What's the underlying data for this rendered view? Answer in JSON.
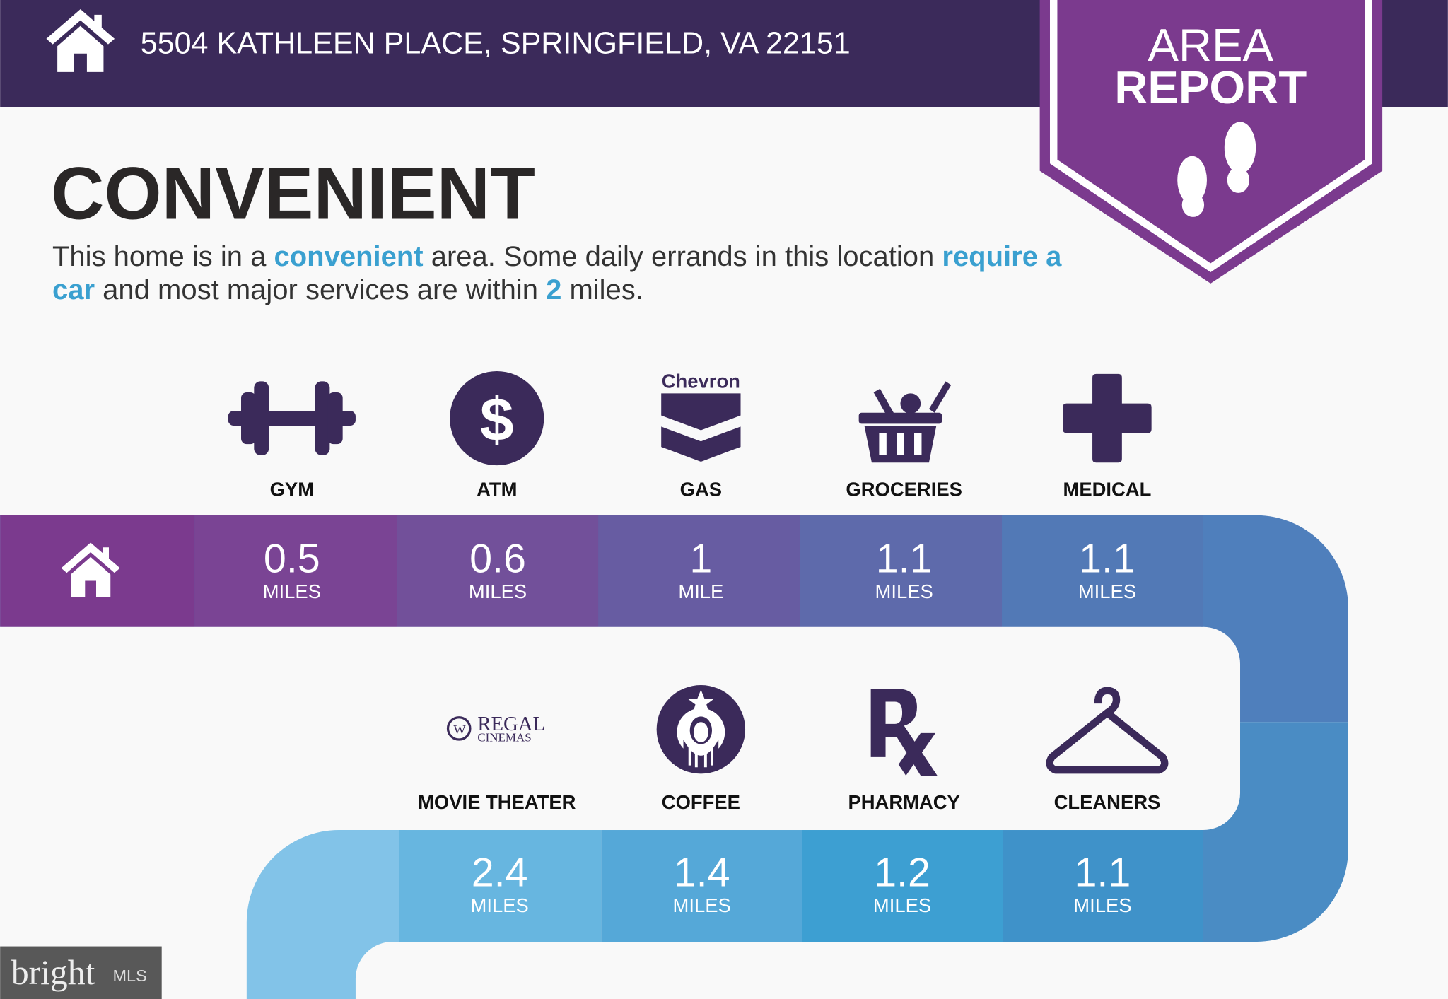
{
  "header": {
    "address": "5504 KATHLEEN PLACE, SPRINGFIELD, VA 22151",
    "home_icon": "house-icon"
  },
  "badge": {
    "line1": "AREA",
    "line2": "REPORT",
    "icon": "footprints-icon"
  },
  "title": "CONVENIENT",
  "description": {
    "p1": "This home is in a ",
    "h1": "convenient",
    "p2": " area. Some daily errands in this location ",
    "h2": "require a car",
    "p3": " and most major services are within ",
    "h3": "2",
    "p4": " miles."
  },
  "row1": [
    {
      "label": "GYM",
      "value": "0.5",
      "unit": "MILES",
      "icon": "dumbbell-icon",
      "color": "#7a4494"
    },
    {
      "label": "ATM",
      "value": "0.6",
      "unit": "MILES",
      "icon": "dollar-icon",
      "color": "#72509a"
    },
    {
      "label": "GAS",
      "value": "1",
      "unit": "MILE",
      "icon": "chevron-logo-icon",
      "logo_text": "Chevron",
      "color": "#675ca2"
    },
    {
      "label": "GROCERIES",
      "value": "1.1",
      "unit": "MILES",
      "icon": "grocery-basket-icon",
      "color": "#5e6aab"
    },
    {
      "label": "MEDICAL",
      "value": "1.1",
      "unit": "MILES",
      "icon": "medical-cross-icon",
      "color": "#5279b6"
    }
  ],
  "row2": [
    {
      "label": "MOVIE THEATER",
      "value": "2.4",
      "unit": "MILES",
      "icon": "regal-cinemas-logo-icon",
      "logo_text": "REGAL CINEMAS",
      "color": "#67b6e0"
    },
    {
      "label": "COFFEE",
      "value": "1.4",
      "unit": "MILES",
      "icon": "starbucks-logo-icon",
      "color": "#55a8d8"
    },
    {
      "label": "PHARMACY",
      "value": "1.2",
      "unit": "MILES",
      "icon": "rx-icon",
      "color": "#3d9fd2"
    },
    {
      "label": "CLEANERS",
      "value": "1.1",
      "unit": "MILES",
      "icon": "hanger-icon",
      "color": "#3f92c9"
    }
  ],
  "colors": {
    "header": "#3b2a5a",
    "badge": "#7b3a8e",
    "highlight": "#3aa0d0",
    "icon": "#3b2a5a",
    "home_cell": "#7b3a8e"
  },
  "watermark": {
    "brand": "bright",
    "suffix": "MLS"
  }
}
